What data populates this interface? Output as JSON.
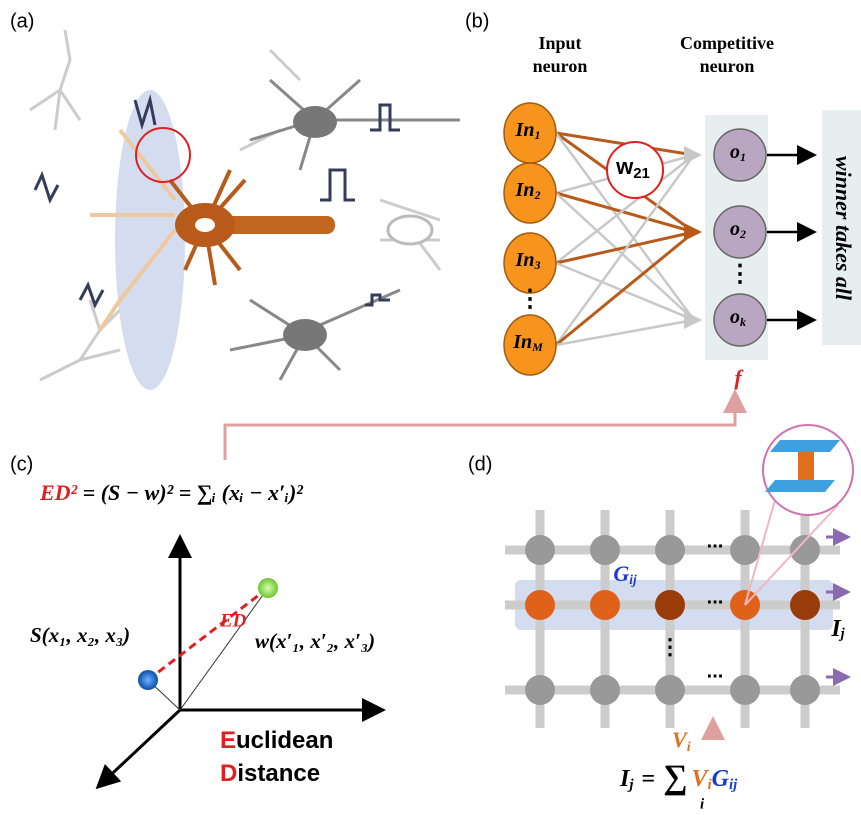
{
  "panels": {
    "a": "(a)",
    "b": "(b)",
    "c": "(c)",
    "d": "(d)"
  },
  "network": {
    "input_header": [
      "Input",
      "neuron"
    ],
    "competitive_header": [
      "Competitive",
      "neuron"
    ],
    "inputs": [
      {
        "base": "In",
        "sub": "1"
      },
      {
        "base": "In",
        "sub": "2"
      },
      {
        "base": "In",
        "sub": "3"
      },
      {
        "base": "In",
        "sub": "M"
      }
    ],
    "input_ellipsis": "⋮",
    "weight": {
      "base": "w",
      "sub": "21"
    },
    "outputs": [
      {
        "base": "o",
        "sub": "1"
      },
      {
        "base": "o",
        "sub": "2"
      },
      {
        "base": "o",
        "sub": "k"
      }
    ],
    "output_ellipsis": "⋮",
    "winner": "winner takes all",
    "activation": "f"
  },
  "distance": {
    "formula_lhs": "ED²",
    "formula_rhs": "= (S − w)² = ∑ᵢ (xᵢ − x′ᵢ)²",
    "point_s": "S(x₁, x₂, x₃)",
    "point_w": "w(x′₁, x′₂, x′₃)",
    "ed": "ED",
    "caption": [
      {
        "initial": "E",
        "rest": "uclidean"
      },
      {
        "initial": "D",
        "rest": "istance"
      }
    ]
  },
  "crossbar": {
    "conductance": {
      "base": "G",
      "sub": "ij"
    },
    "ellipsis": "...",
    "v_ellipsis": "⋮",
    "current": {
      "base": "I",
      "sub": "j"
    },
    "voltage": {
      "base": "V",
      "sub": "i"
    },
    "formula": {
      "lhs": {
        "base": "I",
        "sub": "j"
      },
      "eq": "=",
      "sum": "∑",
      "sum_index": "i",
      "v": {
        "base": "V",
        "sub": "i"
      },
      "g": {
        "base": "G",
        "sub": "ij"
      }
    }
  }
}
